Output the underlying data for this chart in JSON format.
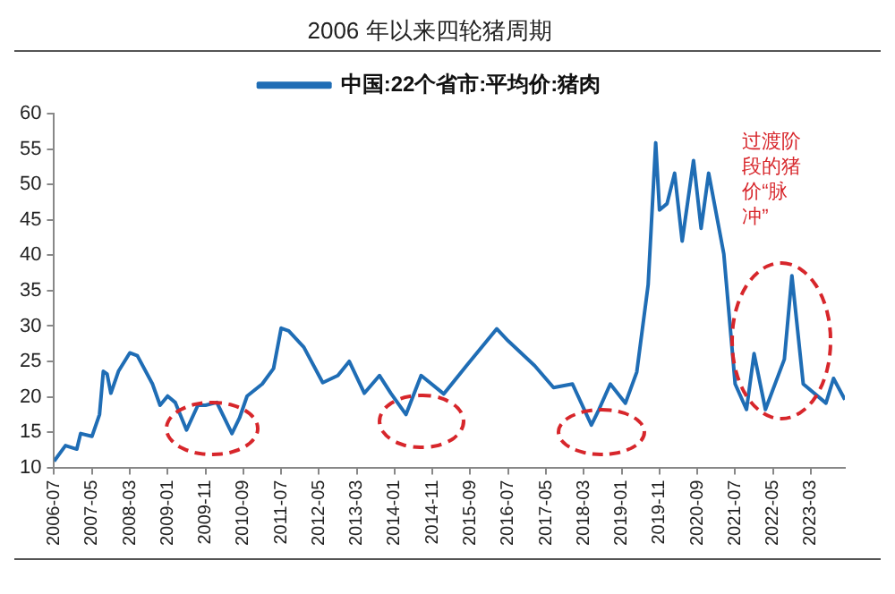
{
  "chart_data": {
    "type": "line",
    "title": "2006 年以来四轮猪周期",
    "x": [
      "2006-07",
      "2006-10",
      "2007-01",
      "2007-02",
      "2007-05",
      "2007-07",
      "2007-08",
      "2007-09",
      "2007-10",
      "2007-12",
      "2008-03",
      "2008-05",
      "2008-09",
      "2008-11",
      "2009-01",
      "2009-03",
      "2009-06",
      "2009-09",
      "2009-11",
      "2010-02",
      "2010-06",
      "2010-08",
      "2010-10",
      "2011-02",
      "2011-05",
      "2011-07",
      "2011-09",
      "2012-01",
      "2012-06",
      "2012-10",
      "2013-01",
      "2013-05",
      "2013-09",
      "2013-12",
      "2014-04",
      "2014-08",
      "2015-02",
      "2015-08",
      "2016-04",
      "2016-07",
      "2017-02",
      "2017-07",
      "2017-12",
      "2018-05",
      "2018-07",
      "2018-10",
      "2019-02",
      "2019-05",
      "2019-08",
      "2019-10",
      "2019-11",
      "2020-01",
      "2020-03",
      "2020-05",
      "2020-08",
      "2020-10",
      "2020-12",
      "2021-04",
      "2021-07",
      "2021-10",
      "2021-12",
      "2022-03",
      "2022-08",
      "2022-10",
      "2023-01",
      "2023-07",
      "2023-09",
      "2023-12"
    ],
    "series": [
      {
        "name": "中国:22个省市:平均价:猪肉",
        "color": "#1f6db5",
        "values": [
          10.9,
          13.1,
          12.6,
          14.8,
          14.4,
          17.5,
          23.6,
          23.2,
          20.5,
          23.6,
          26.2,
          25.8,
          21.8,
          18.8,
          20.1,
          19.2,
          15.3,
          18.8,
          18.8,
          19.2,
          14.8,
          17,
          20.1,
          21.8,
          24,
          29.7,
          29.3,
          27,
          22,
          23,
          25,
          20.5,
          23,
          20.5,
          17.5,
          23,
          20.4,
          24.4,
          29.6,
          27.9,
          24.4,
          21.3,
          21.8,
          16,
          18.2,
          21.8,
          19.1,
          23.5,
          35.8,
          55.9,
          46.4,
          47.3,
          51.6,
          42,
          53.4,
          43.8,
          51.6,
          40.2,
          21.8,
          18.2,
          26.1,
          18.2,
          25.3,
          37.1,
          21.8,
          19.1,
          22.6,
          19.6
        ]
      }
    ],
    "xlim": [
      "2006-07",
      "2023-12"
    ],
    "xticks": [
      "2006-07",
      "2007-05",
      "2008-03",
      "2009-01",
      "2009-11",
      "2010-09",
      "2011-07",
      "2012-05",
      "2013-03",
      "2014-01",
      "2014-11",
      "2015-09",
      "2016-07",
      "2017-05",
      "2018-03",
      "2019-01",
      "2019-11",
      "2020-09",
      "2021-07",
      "2022-05",
      "2023-03"
    ],
    "ylim": [
      10,
      60
    ],
    "yticks": [
      10,
      15,
      20,
      25,
      30,
      35,
      40,
      45,
      50,
      55,
      60
    ],
    "grid": false,
    "legend": "top",
    "marker": "none",
    "line_style": "solid",
    "annotations": [
      "过渡阶段的猪价“脉冲”"
    ]
  }
}
